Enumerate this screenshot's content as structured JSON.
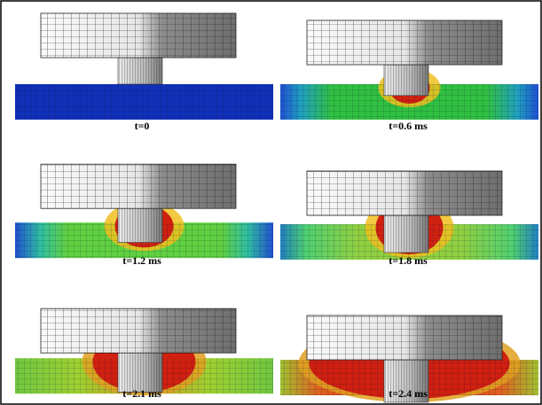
{
  "panels": [
    {
      "caption": "t=0"
    },
    {
      "caption": "t=0.6 ms"
    },
    {
      "caption": "t=1.2 ms"
    },
    {
      "caption": "t=1.8 ms"
    },
    {
      "caption": "t=2.1 ms"
    },
    {
      "caption": "t=2.4 ms"
    }
  ]
}
